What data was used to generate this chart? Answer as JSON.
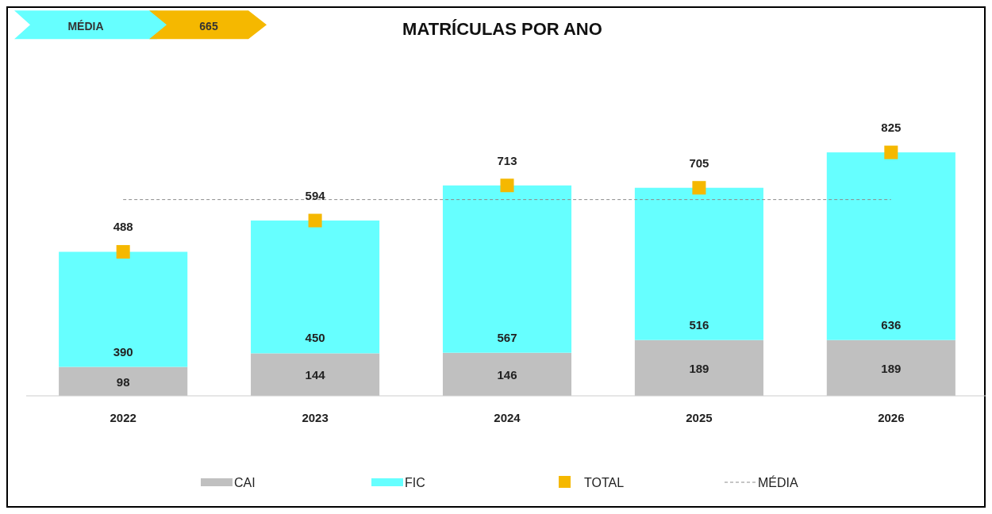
{
  "chart_data": {
    "type": "bar",
    "title": "MATRÍCULAS POR ANO",
    "categories": [
      "2022",
      "2023",
      "2024",
      "2025",
      "2026"
    ],
    "stacked": true,
    "tick_labels": "x",
    "data_labels": true,
    "legend": "bottom",
    "annotations": [
      "665"
    ],
    "series": [
      {
        "name": "CAI",
        "color": "#c0c0c0",
        "values": [
          98,
          144,
          146,
          189,
          189
        ]
      },
      {
        "name": "FIC",
        "color": "#66ffff",
        "values": [
          390,
          450,
          567,
          516,
          636
        ]
      },
      {
        "name": "TOTAL",
        "type": "scatter",
        "marker": "square",
        "color": "#f5b800",
        "values": [
          488,
          594,
          713,
          705,
          825
        ]
      }
    ],
    "ref_lines": [
      {
        "axis": "y",
        "value": 665,
        "label": "MÉDIA",
        "color": "#8c8c8c",
        "line_style": "dashed"
      }
    ]
  }
}
